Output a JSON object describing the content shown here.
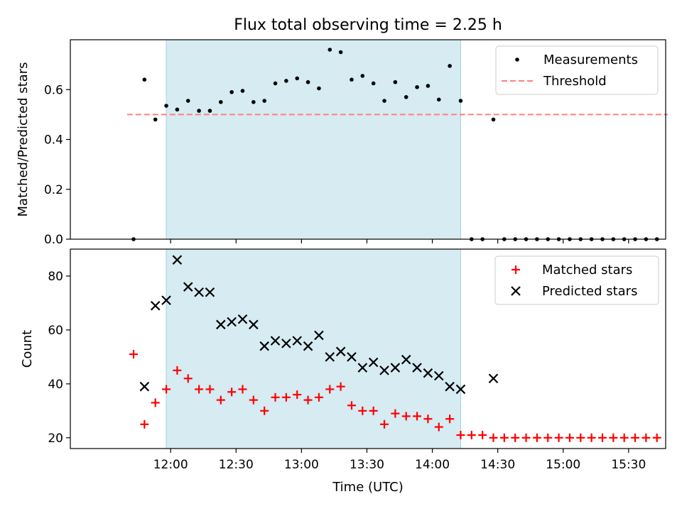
{
  "chart_data": [
    {
      "type": "scatter",
      "title": "Flux total observing time = 2.25 h",
      "xlabel": "",
      "ylabel": "Matched/Predicted stars",
      "xlim": [
        "11:14",
        "15:47"
      ],
      "ylim": [
        0,
        0.8
      ],
      "yticks": [
        0.0,
        0.2,
        0.4,
        0.6
      ],
      "ytick_labels": [
        "0.0",
        "0.2",
        "0.4",
        "0.6"
      ],
      "shaded_interval": [
        "11:58",
        "14:13"
      ],
      "threshold": 0.5,
      "threshold_range": [
        "11:40",
        "15:48"
      ],
      "legend_position": "upper right",
      "series": [
        {
          "name": "Measurements",
          "marker": "dot",
          "color": "#000000",
          "x": [
            "11:43",
            "11:48",
            "11:53",
            "11:58",
            "12:03",
            "12:08",
            "12:13",
            "12:18",
            "12:23",
            "12:28",
            "12:33",
            "12:38",
            "12:43",
            "12:48",
            "12:53",
            "12:58",
            "13:03",
            "13:08",
            "13:13",
            "13:18",
            "13:23",
            "13:28",
            "13:33",
            "13:38",
            "13:43",
            "13:48",
            "13:53",
            "13:58",
            "14:03",
            "14:08",
            "14:13",
            "14:18",
            "14:23",
            "14:28",
            "14:33",
            "14:38",
            "14:43",
            "14:48",
            "14:53",
            "14:58",
            "15:03",
            "15:08",
            "15:13",
            "15:18",
            "15:23",
            "15:28",
            "15:33",
            "15:38",
            "15:43"
          ],
          "y": [
            0.0,
            0.64,
            0.48,
            0.535,
            0.52,
            0.555,
            0.515,
            0.515,
            0.55,
            0.59,
            0.595,
            0.55,
            0.555,
            0.625,
            0.635,
            0.645,
            0.63,
            0.605,
            0.76,
            0.75,
            0.64,
            0.655,
            0.625,
            0.555,
            0.63,
            0.57,
            0.61,
            0.615,
            0.56,
            0.695,
            0.555,
            0.0,
            0.0,
            0.48,
            0.0,
            0.0,
            0.0,
            0.0,
            0.0,
            0.0,
            0.0,
            0.0,
            0.0,
            0.0,
            0.0,
            0.0,
            0.0,
            0.0,
            0.0
          ]
        },
        {
          "name": "Threshold",
          "marker": "dashed-line",
          "color": "#ff7f7f"
        }
      ]
    },
    {
      "type": "scatter",
      "title": "",
      "xlabel": "Time (UTC)",
      "ylabel": "Count",
      "xlim": [
        "11:14",
        "15:47"
      ],
      "ylim": [
        16,
        90
      ],
      "yticks": [
        20,
        40,
        60,
        80
      ],
      "ytick_labels": [
        "20",
        "40",
        "60",
        "80"
      ],
      "xticks": [
        "12:00",
        "12:30",
        "13:00",
        "13:30",
        "14:00",
        "14:30",
        "15:00",
        "15:30"
      ],
      "shaded_interval": [
        "11:58",
        "14:13"
      ],
      "legend_position": "upper right",
      "series": [
        {
          "name": "Matched stars",
          "marker": "plus",
          "color": "#ff0000",
          "x": [
            "11:43",
            "11:48",
            "11:53",
            "11:58",
            "12:03",
            "12:08",
            "12:13",
            "12:18",
            "12:23",
            "12:28",
            "12:33",
            "12:38",
            "12:43",
            "12:48",
            "12:53",
            "12:58",
            "13:03",
            "13:08",
            "13:13",
            "13:18",
            "13:23",
            "13:28",
            "13:33",
            "13:38",
            "13:43",
            "13:48",
            "13:53",
            "13:58",
            "14:03",
            "14:08",
            "14:13",
            "14:18",
            "14:23",
            "14:28",
            "14:33",
            "14:38",
            "14:43",
            "14:48",
            "14:53",
            "14:58",
            "15:03",
            "15:08",
            "15:13",
            "15:18",
            "15:23",
            "15:28",
            "15:33",
            "15:38",
            "15:43"
          ],
          "y": [
            51,
            25,
            33,
            38,
            45,
            42,
            38,
            38,
            34,
            37,
            38,
            34,
            30,
            35,
            35,
            36,
            34,
            35,
            38,
            39,
            32,
            30,
            30,
            25,
            29,
            28,
            28,
            27,
            24,
            27,
            21,
            21,
            21,
            20,
            20,
            20,
            20,
            20,
            20,
            20,
            20,
            20,
            20,
            20,
            20,
            20,
            20,
            20,
            20
          ]
        },
        {
          "name": "Predicted stars",
          "marker": "x",
          "color": "#000000",
          "x": [
            "11:48",
            "11:53",
            "11:58",
            "12:03",
            "12:08",
            "12:13",
            "12:18",
            "12:23",
            "12:28",
            "12:33",
            "12:38",
            "12:43",
            "12:48",
            "12:53",
            "12:58",
            "13:03",
            "13:08",
            "13:13",
            "13:18",
            "13:23",
            "13:28",
            "13:33",
            "13:38",
            "13:43",
            "13:48",
            "13:53",
            "13:58",
            "14:03",
            "14:08",
            "14:13",
            "14:28"
          ],
          "y": [
            39,
            69,
            71,
            86,
            76,
            74,
            74,
            62,
            63,
            64,
            62,
            54,
            56,
            55,
            56,
            54,
            58,
            50,
            52,
            50,
            46,
            48,
            45,
            46,
            49,
            46,
            44,
            43,
            39,
            38,
            42
          ]
        }
      ]
    }
  ]
}
